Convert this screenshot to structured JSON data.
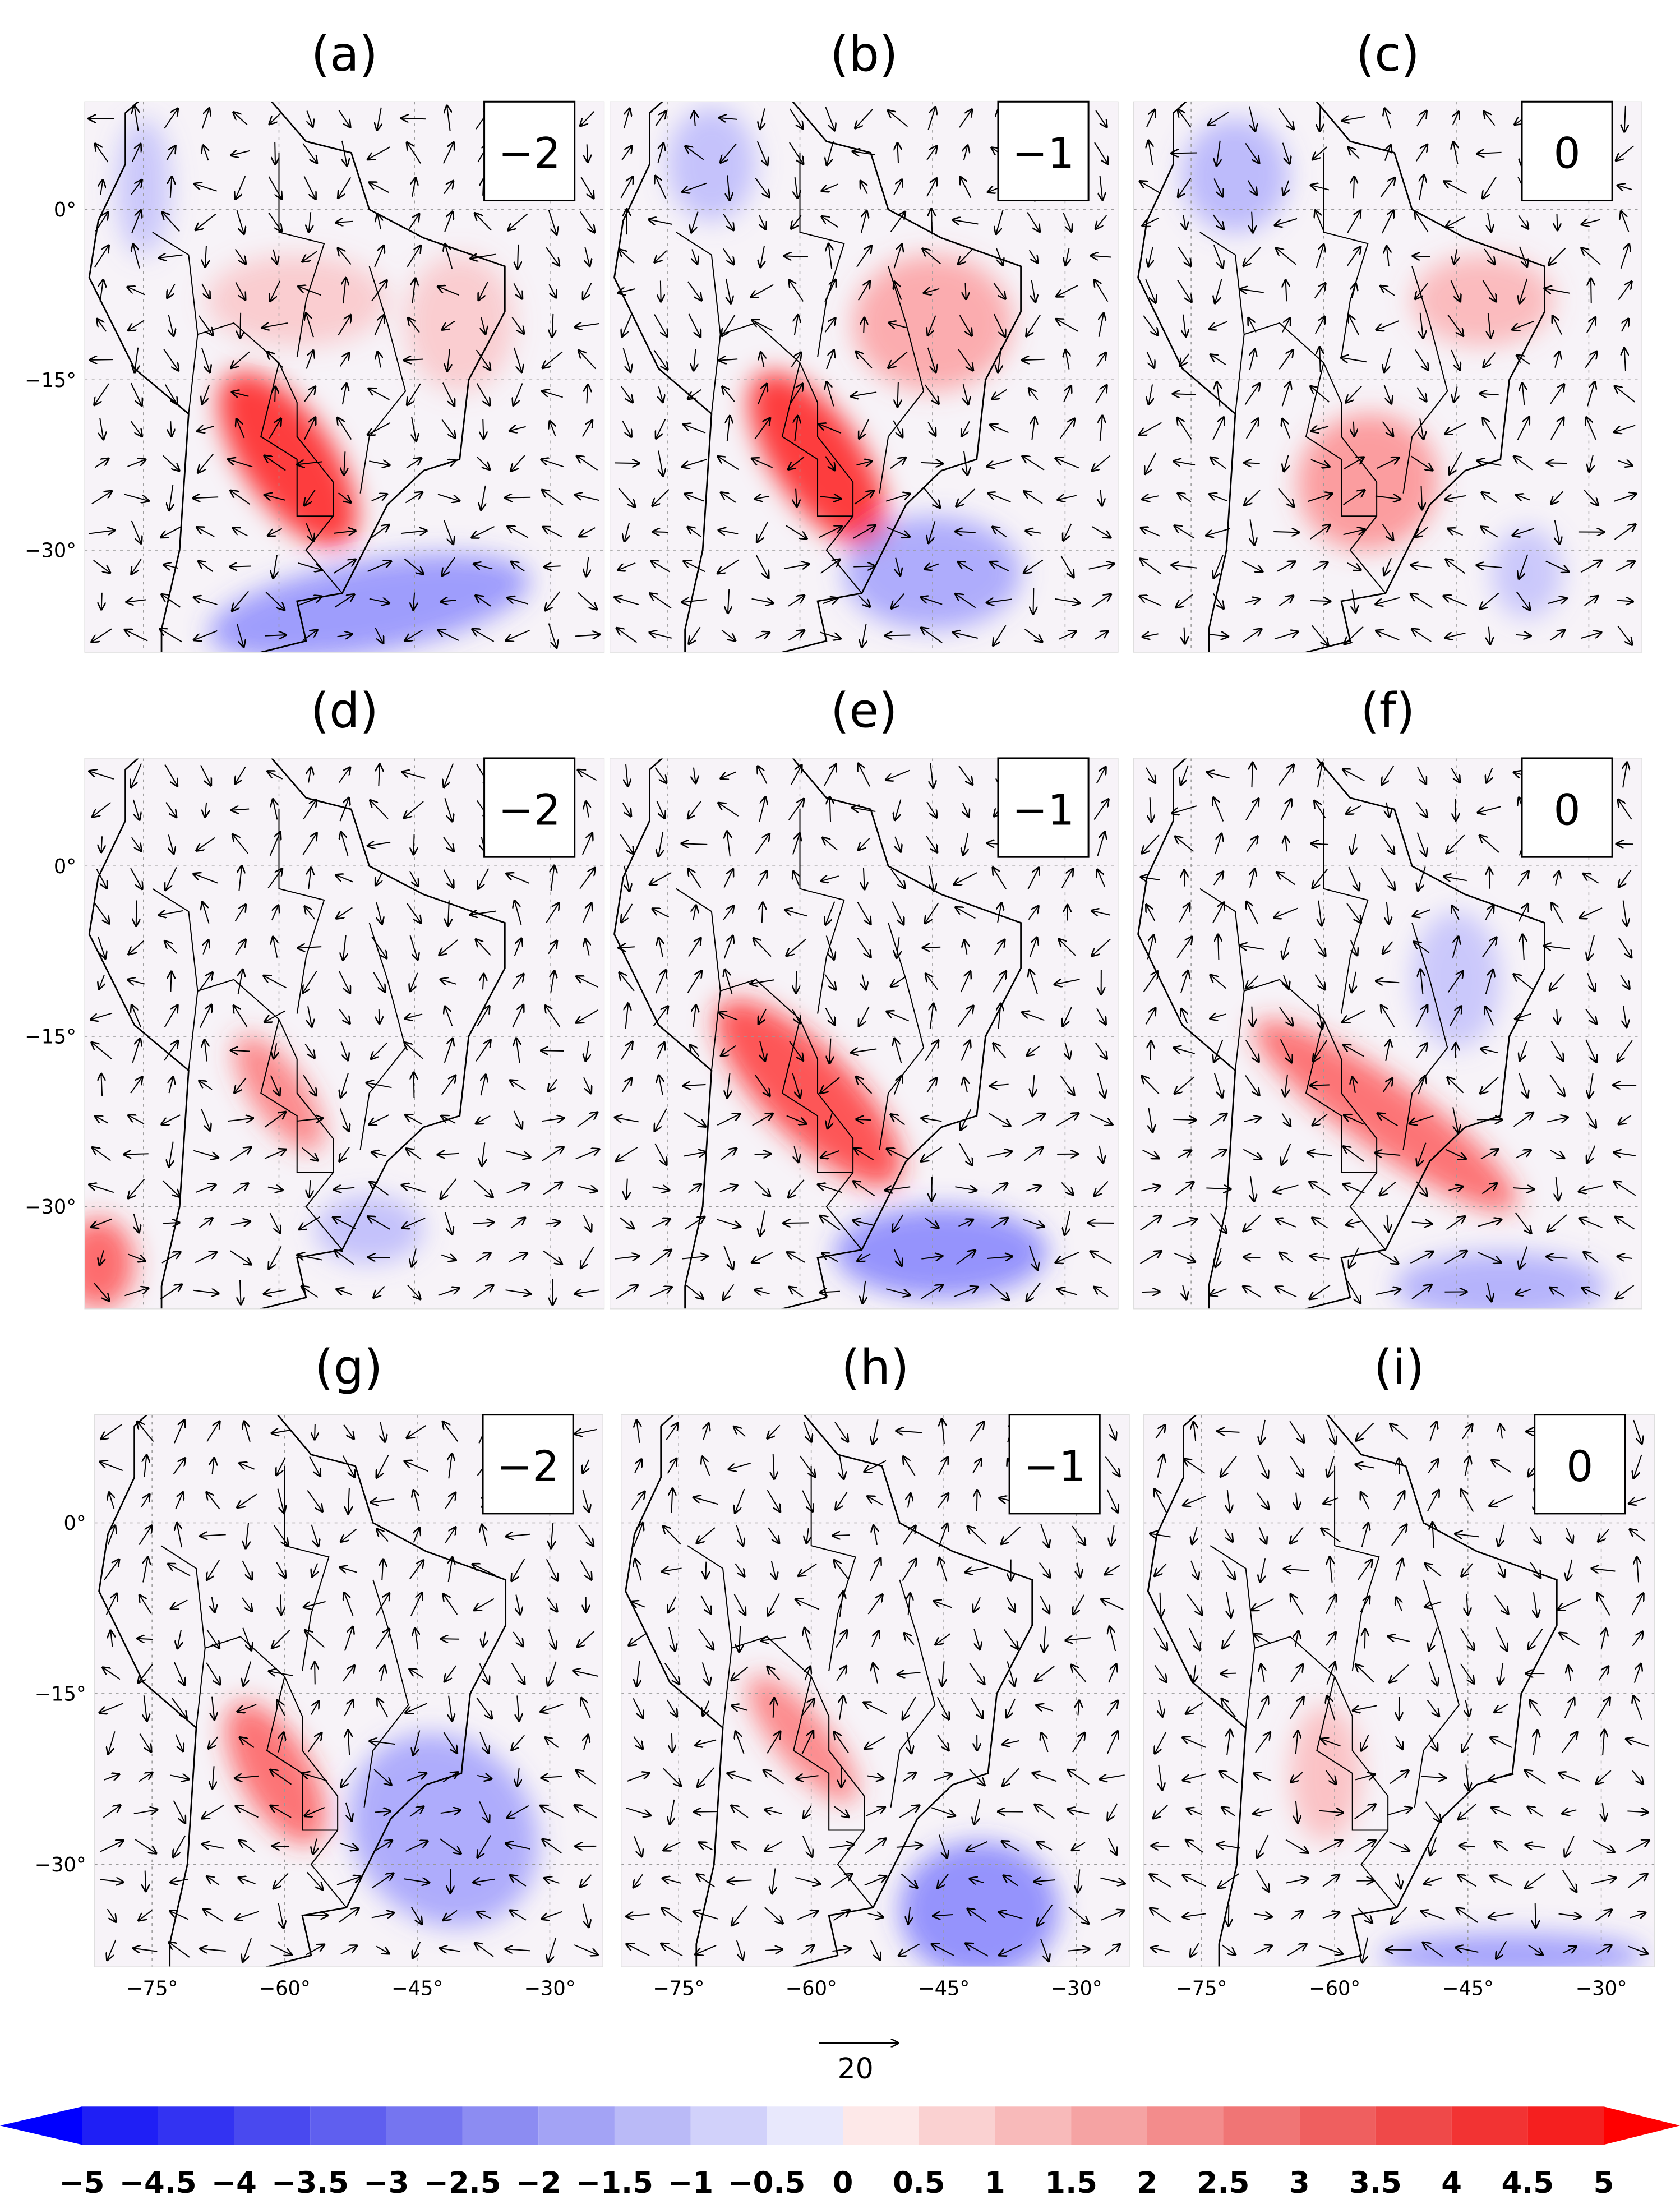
{
  "panels": [
    {
      "label": "(a)",
      "lag": "−2"
    },
    {
      "label": "(b)",
      "lag": "−1"
    },
    {
      "label": "(c)",
      "lag": "0"
    },
    {
      "label": "(d)",
      "lag": "−2"
    },
    {
      "label": "(e)",
      "lag": "−1"
    },
    {
      "label": "(f)",
      "lag": "0"
    },
    {
      "label": "(g)",
      "lag": "−2"
    },
    {
      "label": "(h)",
      "lag": "−1"
    },
    {
      "label": "(i)",
      "lag": "0"
    }
  ],
  "map": {
    "xlim": [
      -81.5,
      -24
    ],
    "ylim": [
      -39,
      9.5
    ],
    "xticks": [
      {
        "value": -75,
        "label": "−75°"
      },
      {
        "value": -60,
        "label": "−60°"
      },
      {
        "value": -45,
        "label": "−45°"
      },
      {
        "value": -30,
        "label": "−30°"
      }
    ],
    "yticks": [
      {
        "value": 0,
        "label": "0°"
      },
      {
        "value": -15,
        "label": "−15°"
      },
      {
        "value": -30,
        "label": "−30°"
      }
    ]
  },
  "reference_vector": 20,
  "colorbar": {
    "levels": [
      {
        "value": -5,
        "label": "−5"
      },
      {
        "value": -4.5,
        "label": "−4.5"
      },
      {
        "value": -4,
        "label": "−4"
      },
      {
        "value": -3.5,
        "label": "−3.5"
      },
      {
        "value": -3,
        "label": "−3"
      },
      {
        "value": -2.5,
        "label": "−2.5"
      },
      {
        "value": -2,
        "label": "−2"
      },
      {
        "value": -1.5,
        "label": "−1.5"
      },
      {
        "value": -1,
        "label": "−1"
      },
      {
        "value": -0.5,
        "label": "−0.5"
      },
      0,
      0.5,
      1,
      1.5,
      2,
      2.5,
      3,
      3.5,
      4,
      4.5,
      5
    ],
    "colors": [
      "#1f1ff5",
      "#3333f2",
      "#4949ef",
      "#5f5fef",
      "#7575f0",
      "#8c8cf2",
      "#a3a3f5",
      "#babaf7",
      "#d1d1fa",
      "#e8e8fc",
      "#fde8e8",
      "#fad1d1",
      "#f8baba",
      "#f5a3a3",
      "#f38c8c",
      "#f07575",
      "#ef5f5f",
      "#ef4949",
      "#f23333",
      "#f51f1f"
    ],
    "extend_colors": [
      "#0000ff",
      "#ff0000"
    ]
  }
}
